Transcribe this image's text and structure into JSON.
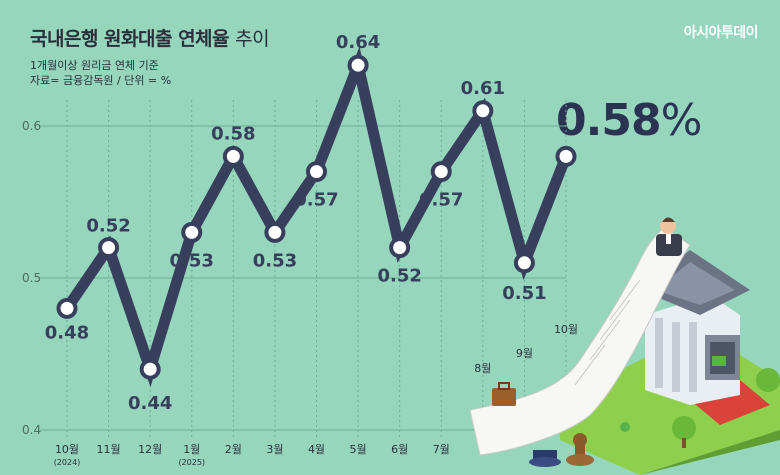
{
  "title": {
    "main": "국내은행 원화대출 연체율",
    "suffix": "추이"
  },
  "subtitle": [
    "1개월이상 원리금 연체 기준",
    "자료= 금융감독원 / 단위 = %"
  ],
  "brand": "아시아투데이",
  "headline": {
    "value": "0.58",
    "unit": "%"
  },
  "colors": {
    "background": "#95d6bd",
    "line": "#383f5c",
    "marker_fill": "#ffffff",
    "grid": "#6fae97"
  },
  "chart_data": {
    "type": "line",
    "categories": [
      {
        "label": "10월",
        "sub": "(2024)"
      },
      {
        "label": "11월",
        "sub": ""
      },
      {
        "label": "12월",
        "sub": ""
      },
      {
        "label": "1월",
        "sub": "(2025)"
      },
      {
        "label": "2월",
        "sub": ""
      },
      {
        "label": "3월",
        "sub": ""
      },
      {
        "label": "4월",
        "sub": ""
      },
      {
        "label": "5월",
        "sub": ""
      },
      {
        "label": "6월",
        "sub": ""
      },
      {
        "label": "7월",
        "sub": ""
      },
      {
        "label": "8월",
        "sub": ""
      },
      {
        "label": "9월",
        "sub": ""
      },
      {
        "label": "10월",
        "sub": ""
      }
    ],
    "values": [
      0.48,
      0.52,
      0.44,
      0.53,
      0.58,
      0.53,
      0.57,
      0.64,
      0.52,
      0.57,
      0.61,
      0.51,
      0.58
    ],
    "data_labels": [
      "0.48",
      "0.52",
      "0.44",
      "0.53",
      "0.58",
      "0.53",
      "0.57",
      "0.64",
      "0.52",
      "0.57",
      "0.61",
      "0.51",
      ""
    ],
    "y_ticks": [
      "0.4",
      "0.5",
      "0.6"
    ],
    "ylim": [
      0.4,
      0.6
    ]
  }
}
